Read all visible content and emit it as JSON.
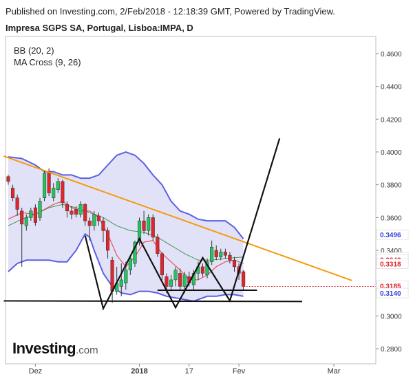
{
  "header": {
    "published": "Published on Investing.com, 2/Feb/2018 - 12:18:39 GMT, Powered by TradingView.",
    "instrument": "Impresa SGPS SA, Portugal, Lisboa:IMPA, D"
  },
  "indicators": {
    "bb": "BB (20, 2)",
    "ma": "MA Cross (9, 26)"
  },
  "logo": {
    "main": "Investing",
    "suffix": ".com"
  },
  "colors": {
    "up": "#22c55e",
    "down": "#e3242b",
    "band": "#5b5fe0",
    "band_fill": "#c9cbf0",
    "ma_fast": "#e8505b",
    "ma_slow": "#3a9a4a",
    "trend": "#f59a0c",
    "pattern": "#111111"
  },
  "chart_data": {
    "type": "candlestick",
    "y_axis": {
      "min": 0.275,
      "max": 0.465,
      "ticks": [
        "0.4600",
        "0.4400",
        "0.4200",
        "0.4000",
        "0.3800",
        "0.3600",
        "0.3400",
        "0.3200",
        "0.3000",
        "0.2800"
      ]
    },
    "x_axis": {
      "labels": [
        "Dez",
        "2018",
        "17",
        "Fev",
        "Mar"
      ],
      "label_index": [
        6,
        29,
        40,
        51,
        72
      ]
    },
    "price_badges": [
      {
        "value": "0.3496",
        "color": "#3344dd"
      },
      {
        "value": "0.3358",
        "color": "#22a83a"
      },
      {
        "value": "0.3343",
        "color": "#e3242b"
      },
      {
        "value": "0.3318",
        "color": "#e3242b"
      },
      {
        "value": "0.3185",
        "color": "#e3242b"
      },
      {
        "value": "0.3140",
        "color": "#3344dd"
      }
    ],
    "candles": [
      [
        0.385,
        0.382,
        0.386,
        0.38
      ],
      [
        0.378,
        0.372,
        0.38,
        0.37
      ],
      [
        0.372,
        0.365,
        0.374,
        0.361
      ],
      [
        0.364,
        0.356,
        0.366,
        0.33
      ],
      [
        0.355,
        0.36,
        0.362,
        0.352
      ],
      [
        0.36,
        0.364,
        0.366,
        0.358
      ],
      [
        0.366,
        0.357,
        0.368,
        0.355
      ],
      [
        0.36,
        0.37,
        0.372,
        0.358
      ],
      [
        0.372,
        0.387,
        0.389,
        0.37
      ],
      [
        0.388,
        0.375,
        0.39,
        0.373
      ],
      [
        0.372,
        0.378,
        0.381,
        0.37
      ],
      [
        0.377,
        0.382,
        0.384,
        0.375
      ],
      [
        0.382,
        0.369,
        0.383,
        0.366
      ],
      [
        0.368,
        0.364,
        0.37,
        0.36
      ],
      [
        0.364,
        0.362,
        0.367,
        0.359
      ],
      [
        0.365,
        0.362,
        0.367,
        0.36
      ],
      [
        0.362,
        0.368,
        0.37,
        0.36
      ],
      [
        0.368,
        0.358,
        0.369,
        0.355
      ],
      [
        0.358,
        0.355,
        0.36,
        0.346
      ],
      [
        0.355,
        0.362,
        0.364,
        0.352
      ],
      [
        0.361,
        0.358,
        0.363,
        0.355
      ],
      [
        0.358,
        0.352,
        0.36,
        0.345
      ],
      [
        0.352,
        0.34,
        0.354,
        0.335
      ],
      [
        0.334,
        0.315,
        0.336,
        0.308
      ],
      [
        0.315,
        0.32,
        0.33,
        0.313
      ],
      [
        0.318,
        0.322,
        0.332,
        0.312
      ],
      [
        0.32,
        0.328,
        0.333,
        0.316
      ],
      [
        0.328,
        0.335,
        0.336,
        0.325
      ],
      [
        0.332,
        0.345,
        0.346,
        0.33
      ],
      [
        0.345,
        0.358,
        0.36,
        0.343
      ],
      [
        0.358,
        0.352,
        0.364,
        0.35
      ],
      [
        0.352,
        0.36,
        0.362,
        0.349
      ],
      [
        0.36,
        0.348,
        0.362,
        0.346
      ],
      [
        0.348,
        0.338,
        0.35,
        0.336
      ],
      [
        0.338,
        0.325,
        0.339,
        0.322
      ],
      [
        0.324,
        0.318,
        0.326,
        0.314
      ],
      [
        0.318,
        0.322,
        0.325,
        0.315
      ],
      [
        0.322,
        0.328,
        0.33,
        0.318
      ],
      [
        0.326,
        0.318,
        0.329,
        0.316
      ],
      [
        0.318,
        0.325,
        0.327,
        0.314
      ],
      [
        0.324,
        0.32,
        0.327,
        0.318
      ],
      [
        0.319,
        0.326,
        0.328,
        0.316
      ],
      [
        0.326,
        0.33,
        0.333,
        0.322
      ],
      [
        0.33,
        0.326,
        0.332,
        0.324
      ],
      [
        0.325,
        0.333,
        0.335,
        0.323
      ],
      [
        0.333,
        0.342,
        0.346,
        0.331
      ],
      [
        0.34,
        0.336,
        0.343,
        0.334
      ],
      [
        0.336,
        0.339,
        0.341,
        0.334
      ],
      [
        0.339,
        0.337,
        0.341,
        0.335
      ],
      [
        0.337,
        0.334,
        0.339,
        0.332
      ],
      [
        0.334,
        0.33,
        0.336,
        0.327
      ],
      [
        0.33,
        0.326,
        0.332,
        0.322
      ],
      [
        0.327,
        0.318,
        0.328,
        0.316
      ]
    ],
    "bb_upper": [
      [
        0,
        0.397
      ],
      [
        3,
        0.396
      ],
      [
        6,
        0.392
      ],
      [
        8,
        0.388
      ],
      [
        10,
        0.388
      ],
      [
        12,
        0.386
      ],
      [
        14,
        0.386
      ],
      [
        16,
        0.384
      ],
      [
        18,
        0.384
      ],
      [
        20,
        0.386
      ],
      [
        22,
        0.392
      ],
      [
        24,
        0.398
      ],
      [
        26,
        0.4
      ],
      [
        28,
        0.398
      ],
      [
        30,
        0.393
      ],
      [
        32,
        0.386
      ],
      [
        34,
        0.38
      ],
      [
        36,
        0.37
      ],
      [
        38,
        0.364
      ],
      [
        40,
        0.362
      ],
      [
        42,
        0.359
      ],
      [
        44,
        0.358
      ],
      [
        46,
        0.358
      ],
      [
        48,
        0.358
      ],
      [
        50,
        0.354
      ],
      [
        52,
        0.347
      ]
    ],
    "bb_lower": [
      [
        0,
        0.327
      ],
      [
        2,
        0.332
      ],
      [
        4,
        0.334
      ],
      [
        7,
        0.334
      ],
      [
        9,
        0.334
      ],
      [
        11,
        0.333
      ],
      [
        13,
        0.333
      ],
      [
        15,
        0.34
      ],
      [
        17,
        0.35
      ],
      [
        18,
        0.348
      ],
      [
        19,
        0.34
      ],
      [
        21,
        0.326
      ],
      [
        23,
        0.318
      ],
      [
        25,
        0.314
      ],
      [
        27,
        0.313
      ],
      [
        29,
        0.315
      ],
      [
        31,
        0.315
      ],
      [
        33,
        0.314
      ],
      [
        35,
        0.312
      ],
      [
        37,
        0.311
      ],
      [
        39,
        0.31
      ],
      [
        41,
        0.309
      ],
      [
        42,
        0.31
      ],
      [
        44,
        0.312
      ],
      [
        46,
        0.312
      ],
      [
        48,
        0.313
      ],
      [
        50,
        0.313
      ],
      [
        52,
        0.312
      ]
    ],
    "ma_fast": [
      [
        0,
        0.359
      ],
      [
        3,
        0.363
      ],
      [
        6,
        0.362
      ],
      [
        8,
        0.365
      ],
      [
        10,
        0.368
      ],
      [
        12,
        0.37
      ],
      [
        14,
        0.366
      ],
      [
        16,
        0.364
      ],
      [
        18,
        0.364
      ],
      [
        20,
        0.36
      ],
      [
        22,
        0.35
      ],
      [
        24,
        0.337
      ],
      [
        26,
        0.33
      ],
      [
        28,
        0.336
      ],
      [
        30,
        0.345
      ],
      [
        32,
        0.346
      ],
      [
        34,
        0.338
      ],
      [
        36,
        0.333
      ],
      [
        38,
        0.328
      ],
      [
        40,
        0.322
      ],
      [
        42,
        0.322
      ],
      [
        44,
        0.325
      ],
      [
        46,
        0.33
      ],
      [
        48,
        0.333
      ],
      [
        50,
        0.334
      ],
      [
        52,
        0.332
      ]
    ],
    "ma_slow": [
      [
        0,
        0.355
      ],
      [
        3,
        0.359
      ],
      [
        6,
        0.362
      ],
      [
        9,
        0.366
      ],
      [
        12,
        0.368
      ],
      [
        15,
        0.366
      ],
      [
        18,
        0.363
      ],
      [
        21,
        0.36
      ],
      [
        24,
        0.355
      ],
      [
        27,
        0.352
      ],
      [
        30,
        0.351
      ],
      [
        33,
        0.348
      ],
      [
        36,
        0.343
      ],
      [
        39,
        0.338
      ],
      [
        42,
        0.334
      ],
      [
        45,
        0.334
      ],
      [
        48,
        0.335
      ],
      [
        52,
        0.336
      ]
    ],
    "trendline": [
      [
        -1,
        0.3975
      ],
      [
        76,
        0.3216
      ]
    ],
    "support_line": [
      [
        -1,
        0.3092
      ],
      [
        65,
        0.3088
      ]
    ],
    "neckline": [
      [
        33,
        0.3157
      ],
      [
        55,
        0.3157
      ]
    ],
    "pattern": [
      [
        17,
        0.349
      ],
      [
        21,
        0.3045
      ],
      [
        29,
        0.3471
      ],
      [
        37,
        0.3051
      ],
      [
        43,
        0.3355
      ],
      [
        49,
        0.3093
      ],
      [
        60,
        0.4083
      ]
    ]
  }
}
